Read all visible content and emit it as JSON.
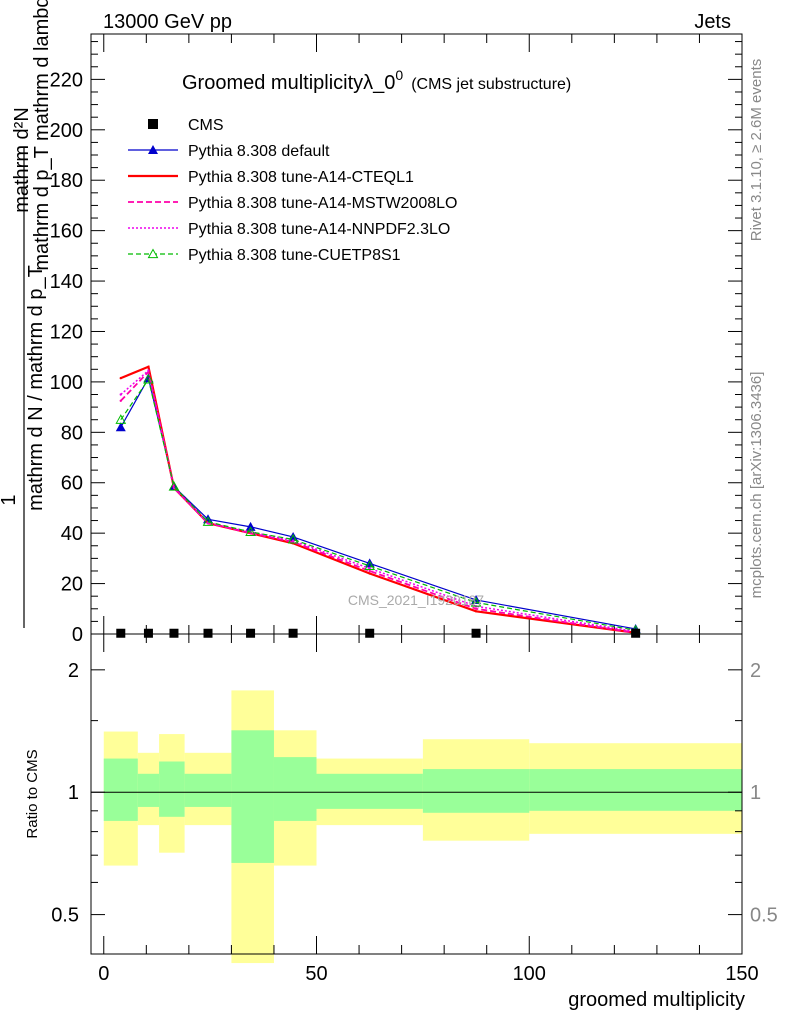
{
  "header": {
    "left": "13000 GeV pp",
    "right": "Jets"
  },
  "side": {
    "rivet": "Rivet 3.1.10, ≥ 2.6M events",
    "mcplots": "mcplots.cern.ch [arXiv:1306.3436]"
  },
  "watermark": "CMS_2021_I1920187",
  "chart_data": [
    {
      "type": "line",
      "title_main": "Groomed multiplicityλ_0",
      "title_sup": "0",
      "title_sub": "(CMS jet substructure)",
      "ylabel_top": "mathrm d²N",
      "ylabel_top2": "mathrm d p_T mathrm d lambda",
      "ylabel_bottom": "mathrm d N / mathrm d p_T",
      "ylabel_one": "1",
      "xlim": [
        -3,
        150
      ],
      "ylim": [
        0,
        238
      ],
      "yticks": [
        0,
        20,
        40,
        60,
        80,
        100,
        120,
        140,
        160,
        180,
        200,
        220
      ],
      "legend_position": "top-left",
      "data": {
        "name": "CMS",
        "x": [
          4,
          10.5,
          16.5,
          24.5,
          34.5,
          44.5,
          62.5,
          87.5,
          125
        ],
        "y": [
          0.3,
          0.3,
          0.3,
          0.3,
          0.3,
          0.3,
          0.3,
          0.3,
          0.3
        ]
      },
      "series": [
        {
          "name": "Pythia 8.308 default",
          "color": "#0000cc",
          "dash": "",
          "marker": "triangle-filled",
          "width": 1.2,
          "y": [
            82,
            101.5,
            58.5,
            45.5,
            42.5,
            38.5,
            28,
            13.5,
            2
          ]
        },
        {
          "name": "Pythia 8.308 tune-A14-CTEQL1",
          "color": "#ff0000",
          "dash": "",
          "marker": "none",
          "width": 2.2,
          "y": [
            101.5,
            106,
            58,
            44,
            40,
            36,
            24,
            9,
            0.5
          ]
        },
        {
          "name": "Pythia 8.308 tune-A14-MSTW2008LO",
          "color": "#ff00aa",
          "dash": "6,3",
          "marker": "none",
          "width": 1.8,
          "y": [
            92.5,
            104,
            58,
            44,
            40,
            36.5,
            25,
            10,
            0.5
          ]
        },
        {
          "name": "Pythia 8.308 tune-A14-NNPDF2.3LO",
          "color": "#ee00ee",
          "dash": "2,2",
          "marker": "none",
          "width": 1.5,
          "y": [
            95,
            104.5,
            58,
            44,
            40.5,
            37,
            26,
            11,
            1
          ]
        },
        {
          "name": "Pythia 8.308 tune-CUETP8S1",
          "color": "#00bb00",
          "dash": "5,3",
          "marker": "triangle-open",
          "width": 1.2,
          "y": [
            85,
            101,
            58.5,
            44.5,
            40.5,
            37.5,
            27,
            12.5,
            1.5
          ]
        }
      ]
    },
    {
      "type": "area",
      "ylabel": "Ratio to CMS",
      "xlabel": "groomed multiplicity",
      "xlim": [
        -3,
        150
      ],
      "xticks": [
        0,
        50,
        100,
        150
      ],
      "ylim_log": [
        0.4,
        2.45
      ],
      "yticks": [
        0.5,
        1,
        2
      ],
      "bands": [
        {
          "x0": 0,
          "x1": 8,
          "in_lo": 0.85,
          "in_hi": 1.21,
          "out_lo": 0.66,
          "out_hi": 1.41
        },
        {
          "x0": 8,
          "x1": 13,
          "in_lo": 0.92,
          "in_hi": 1.11,
          "out_lo": 0.83,
          "out_hi": 1.25
        },
        {
          "x0": 13,
          "x1": 19,
          "in_lo": 0.87,
          "in_hi": 1.19,
          "out_lo": 0.71,
          "out_hi": 1.39
        },
        {
          "x0": 19,
          "x1": 30,
          "in_lo": 0.92,
          "in_hi": 1.11,
          "out_lo": 0.83,
          "out_hi": 1.25
        },
        {
          "x0": 30,
          "x1": 40,
          "in_lo": 0.67,
          "in_hi": 1.42,
          "out_lo": 0.38,
          "out_hi": 1.78
        },
        {
          "x0": 40,
          "x1": 50,
          "in_lo": 0.85,
          "in_hi": 1.22,
          "out_lo": 0.66,
          "out_hi": 1.42
        },
        {
          "x0": 50,
          "x1": 75,
          "in_lo": 0.91,
          "in_hi": 1.11,
          "out_lo": 0.83,
          "out_hi": 1.21
        },
        {
          "x0": 75,
          "x1": 100,
          "in_lo": 0.89,
          "in_hi": 1.14,
          "out_lo": 0.76,
          "out_hi": 1.35
        },
        {
          "x0": 100,
          "x1": 150,
          "in_lo": 0.9,
          "in_hi": 1.14,
          "out_lo": 0.79,
          "out_hi": 1.32
        }
      ],
      "band_colors": {
        "inner": "#99ff99",
        "outer": "#ffff99"
      }
    }
  ]
}
